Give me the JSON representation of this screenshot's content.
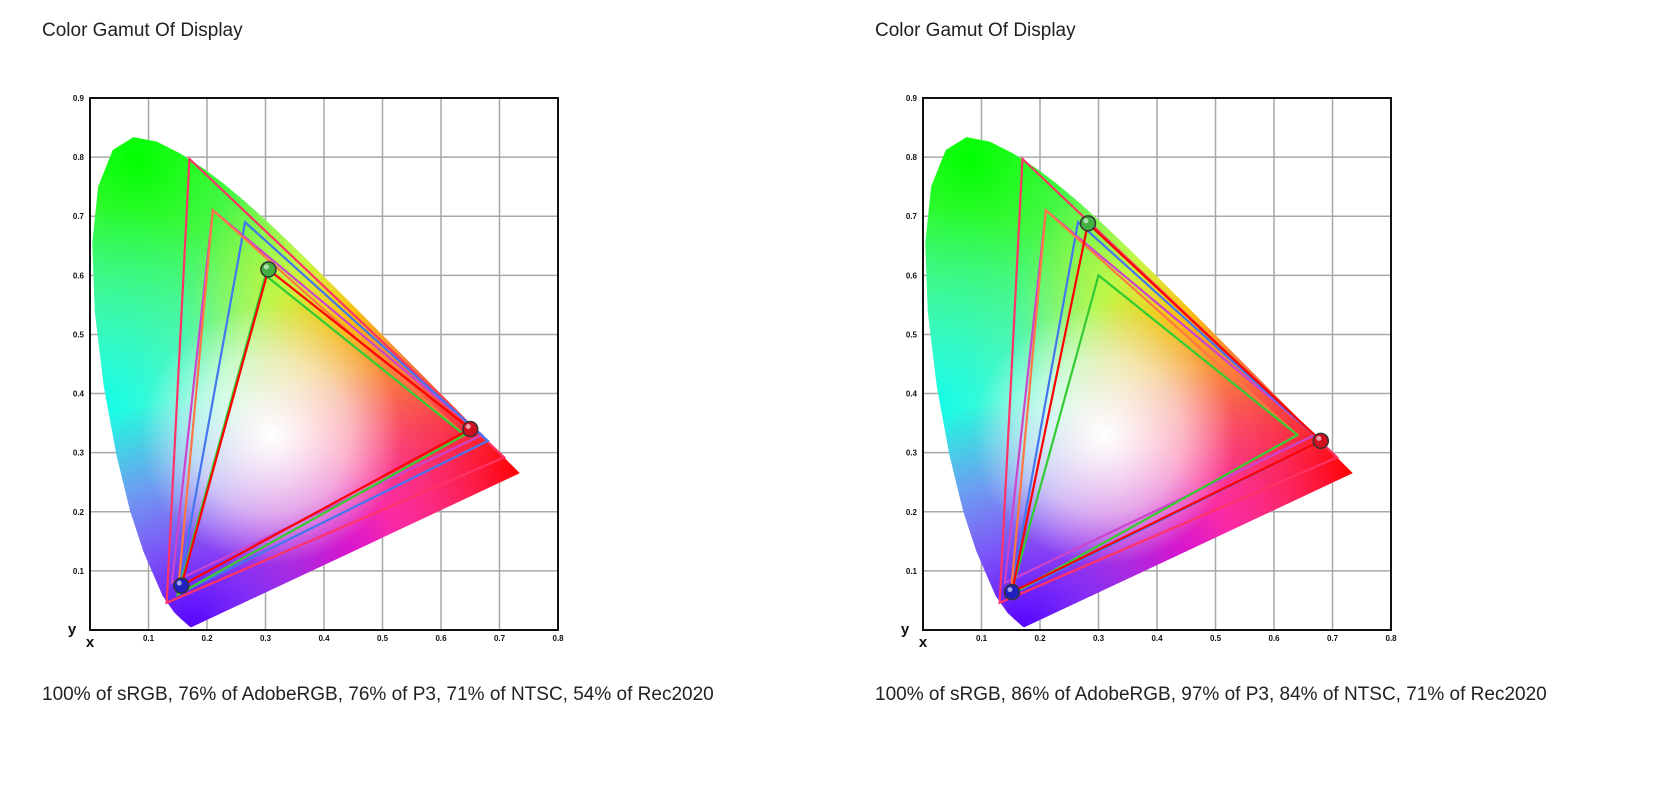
{
  "charts": [
    {
      "title": "Color Gamut Of Display",
      "caption": "100% of sRGB, 76% of AdobeRGB, 76% of P3, 71% of NTSC, 54% of Rec2020",
      "chart_data": {
        "type": "scatter",
        "title": "Color Gamut Of Display",
        "xlabel": "x",
        "ylabel": "y",
        "xlim": [
          0,
          0.8
        ],
        "ylim": [
          0,
          0.9
        ],
        "x_ticks": [
          "0.1",
          "0.2",
          "0.3",
          "0.4",
          "0.5",
          "0.6",
          "0.7",
          "0.8"
        ],
        "y_ticks": [
          "0.1",
          "0.2",
          "0.3",
          "0.4",
          "0.5",
          "0.6",
          "0.7",
          "0.8",
          "0.9"
        ],
        "grid": true,
        "reference_gamuts": [
          {
            "color": "#ff3366",
            "points": [
              [
                0.708,
                0.292
              ],
              [
                0.17,
                0.797
              ],
              [
                0.131,
                0.046
              ]
            ]
          },
          {
            "color": "#cc44cc",
            "points": [
              [
                0.67,
                0.33
              ],
              [
                0.21,
                0.71
              ],
              [
                0.14,
                0.08
              ]
            ]
          },
          {
            "color": "#4477ee",
            "points": [
              [
                0.68,
                0.32
              ],
              [
                0.265,
                0.69
              ],
              [
                0.15,
                0.06
              ]
            ]
          },
          {
            "color": "#ff7744",
            "points": [
              [
                0.64,
                0.33
              ],
              [
                0.21,
                0.71
              ],
              [
                0.15,
                0.06
              ]
            ]
          },
          {
            "color": "#33cc33",
            "points": [
              [
                0.64,
                0.33
              ],
              [
                0.3,
                0.6
              ],
              [
                0.15,
                0.06
              ]
            ]
          }
        ],
        "display_gamut": {
          "color": "#ff0000",
          "points": [
            [
              0.65,
              0.34
            ],
            [
              0.305,
              0.61
            ],
            [
              0.156,
              0.075
            ]
          ]
        }
      }
    },
    {
      "title": "Color Gamut Of Display",
      "caption": "100% of sRGB, 86% of AdobeRGB, 97% of P3, 84% of NTSC, 71% of Rec2020",
      "chart_data": {
        "type": "scatter",
        "title": "Color Gamut Of Display",
        "xlabel": "x",
        "ylabel": "y",
        "xlim": [
          0,
          0.8
        ],
        "ylim": [
          0,
          0.9
        ],
        "x_ticks": [
          "0.1",
          "0.2",
          "0.3",
          "0.4",
          "0.5",
          "0.6",
          "0.7",
          "0.8"
        ],
        "y_ticks": [
          "0.1",
          "0.2",
          "0.3",
          "0.4",
          "0.5",
          "0.6",
          "0.7",
          "0.8",
          "0.9"
        ],
        "grid": true,
        "reference_gamuts": [
          {
            "color": "#ff3366",
            "points": [
              [
                0.708,
                0.292
              ],
              [
                0.17,
                0.797
              ],
              [
                0.131,
                0.046
              ]
            ]
          },
          {
            "color": "#cc44cc",
            "points": [
              [
                0.67,
                0.33
              ],
              [
                0.21,
                0.71
              ],
              [
                0.14,
                0.08
              ]
            ]
          },
          {
            "color": "#4477ee",
            "points": [
              [
                0.68,
                0.32
              ],
              [
                0.265,
                0.69
              ],
              [
                0.15,
                0.06
              ]
            ]
          },
          {
            "color": "#ff7744",
            "points": [
              [
                0.64,
                0.33
              ],
              [
                0.21,
                0.71
              ],
              [
                0.15,
                0.06
              ]
            ]
          },
          {
            "color": "#33cc33",
            "points": [
              [
                0.64,
                0.33
              ],
              [
                0.3,
                0.6
              ],
              [
                0.15,
                0.06
              ]
            ]
          }
        ],
        "display_gamut": {
          "color": "#ff0000",
          "points": [
            [
              0.68,
              0.32
            ],
            [
              0.282,
              0.688
            ],
            [
              0.152,
              0.064
            ]
          ]
        }
      }
    }
  ]
}
